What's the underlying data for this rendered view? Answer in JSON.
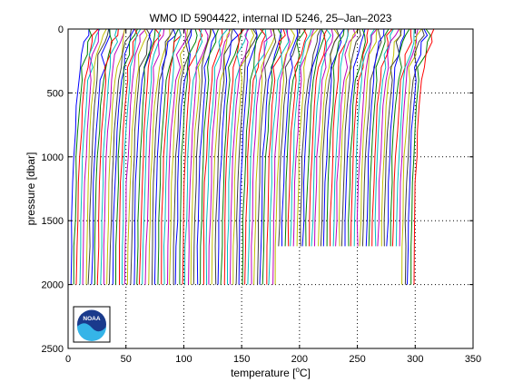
{
  "chart_data": {
    "type": "line",
    "title": "WMO ID 5904422, internal ID 5246, 25–Jan–2023",
    "xlabel": "temperature [",
    "xlabel_unit_sup": "o",
    "xlabel_unit": "C]",
    "ylabel": "pressure [dbar]",
    "xlim": [
      0,
      350
    ],
    "ylim": [
      0,
      2500
    ],
    "y_reversed": true,
    "grid": "dotted",
    "xticks": [
      0,
      50,
      100,
      150,
      200,
      250,
      300,
      350
    ],
    "yticks": [
      0,
      500,
      1000,
      1500,
      2000,
      2500
    ],
    "xtick_labels": [
      "0",
      "50",
      "100",
      "150",
      "200",
      "250",
      "300",
      "350"
    ],
    "ytick_labels": [
      "0",
      "500",
      "1000",
      "1500",
      "2000",
      "2500"
    ],
    "profile_count": 115,
    "profile_spacing": 2.6,
    "profile_start_offset": 0,
    "profile_shape": {
      "pressure": [
        0,
        50,
        100,
        200,
        300,
        400,
        600,
        800,
        1000,
        1200,
        1500,
        1700,
        2000
      ],
      "temperature": [
        18,
        17.5,
        16,
        13,
        11,
        9.5,
        7.5,
        6,
        4.8,
        4,
        3.2,
        2.8,
        2.3
      ]
    },
    "series_colors": [
      "#0000ff",
      "#008000",
      "#ff0000",
      "#00bfbf",
      "#bf00bf",
      "#bfbf00",
      "#404040"
    ]
  },
  "logo": {
    "text": "NOAA"
  }
}
